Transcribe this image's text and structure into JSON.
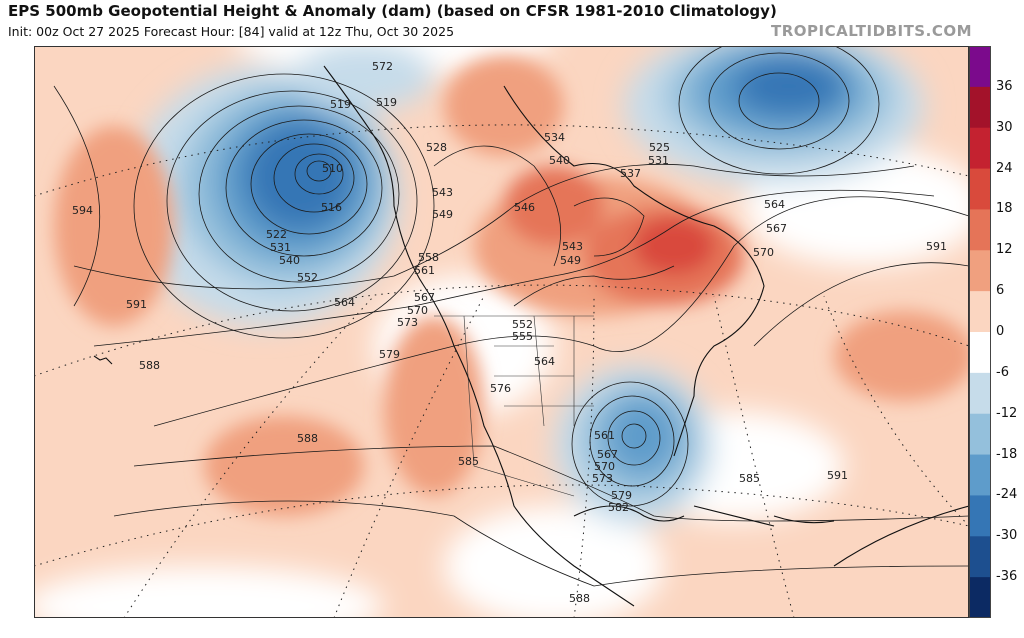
{
  "header": {
    "title": "EPS 500mb Geopotential Height & Anomaly (dam) (based on CFSR 1981-2010 Climatology)",
    "subtitle": "Init: 00z Oct 27 2025   Forecast Hour: [84]   valid at 12z Thu, Oct 30 2025",
    "brand": "TROPICALTIDBITS.COM"
  },
  "colorbar": {
    "labels": [
      "36",
      "30",
      "24",
      "18",
      "12",
      "6",
      "0",
      "-6",
      "-12",
      "-18",
      "-24",
      "-30",
      "-36"
    ],
    "colors": [
      "#7b0a8c",
      "#a3122a",
      "#c42230",
      "#d94a3c",
      "#e57458",
      "#f0a07f",
      "#fbd6c1",
      "#ffffff",
      "#c6dcea",
      "#94c0dc",
      "#5e9ccb",
      "#3576b5",
      "#1d4f8f",
      "#0c2a63"
    ]
  },
  "map": {
    "anomaly_features": [
      {
        "name": "trough-gulf-of-alaska",
        "sign": "negative"
      },
      {
        "name": "trough-davis-strait",
        "sign": "negative"
      },
      {
        "name": "trough-southeast-us",
        "sign": "negative"
      },
      {
        "name": "ridge-hudson-bay-quebec",
        "sign": "positive"
      },
      {
        "name": "ridge-western-us",
        "sign": "positive"
      },
      {
        "name": "ridge-central-atlantic",
        "sign": "positive"
      }
    ],
    "height_labels": [
      {
        "text": "572"
      },
      {
        "text": "519"
      },
      {
        "text": "519"
      },
      {
        "text": "510"
      },
      {
        "text": "516"
      },
      {
        "text": "522"
      },
      {
        "text": "531"
      },
      {
        "text": "540"
      },
      {
        "text": "552"
      },
      {
        "text": "564"
      },
      {
        "text": "528"
      },
      {
        "text": "534"
      },
      {
        "text": "540"
      },
      {
        "text": "525"
      },
      {
        "text": "531"
      },
      {
        "text": "537"
      },
      {
        "text": "543"
      },
      {
        "text": "549"
      },
      {
        "text": "546"
      },
      {
        "text": "543"
      },
      {
        "text": "549"
      },
      {
        "text": "564"
      },
      {
        "text": "567"
      },
      {
        "text": "570"
      },
      {
        "text": "591"
      },
      {
        "text": "594"
      },
      {
        "text": "591"
      },
      {
        "text": "588"
      },
      {
        "text": "558"
      },
      {
        "text": "561"
      },
      {
        "text": "567"
      },
      {
        "text": "570"
      },
      {
        "text": "573"
      },
      {
        "text": "579"
      },
      {
        "text": "552"
      },
      {
        "text": "555"
      },
      {
        "text": "564"
      },
      {
        "text": "576"
      },
      {
        "text": "588"
      },
      {
        "text": "585"
      },
      {
        "text": "561"
      },
      {
        "text": "567"
      },
      {
        "text": "570"
      },
      {
        "text": "573"
      },
      {
        "text": "579"
      },
      {
        "text": "582"
      },
      {
        "text": "585"
      },
      {
        "text": "591"
      },
      {
        "text": "588"
      }
    ]
  }
}
